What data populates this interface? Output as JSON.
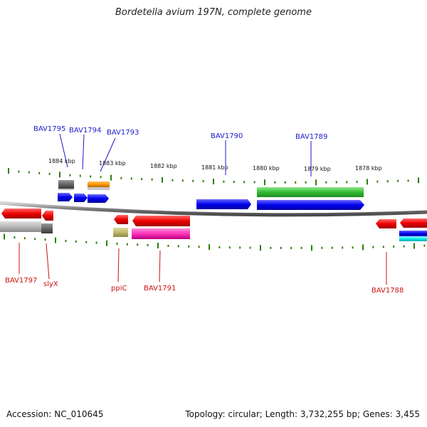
{
  "title": "Bordetella avium 197N, complete genome",
  "footer": {
    "accession": "Accession: NC_010645",
    "summary": "Topology: circular; Length: 3,732,255 bp; Genes: 3,455"
  },
  "colors": {
    "backbone": "#8c8c8c",
    "tick": "#2e7d0e",
    "label_top": "#1a1acc",
    "label_bottom": "#cc1111"
  },
  "scale_labels": [
    {
      "text": "1884 kbp",
      "kbp": 1884
    },
    {
      "text": "1883 kbp",
      "kbp": 1883
    },
    {
      "text": "1882 kbp",
      "kbp": 1882
    },
    {
      "text": "1881 kbp",
      "kbp": 1881
    },
    {
      "text": "1880 kbp",
      "kbp": 1880
    },
    {
      "text": "1879 kbp",
      "kbp": 1879
    },
    {
      "text": "1878 kbp",
      "kbp": 1878
    }
  ],
  "gene_labels": [
    {
      "text": "BAV1795",
      "side": "top"
    },
    {
      "text": "BAV1794",
      "side": "top"
    },
    {
      "text": "BAV1793",
      "side": "top"
    },
    {
      "text": "BAV1790",
      "side": "top"
    },
    {
      "text": "BAV1789",
      "side": "top"
    },
    {
      "text": "BAV1797",
      "side": "bottom"
    },
    {
      "text": "slyX",
      "side": "bottom"
    },
    {
      "text": "ppiC",
      "side": "bottom"
    },
    {
      "text": "BAV1791",
      "side": "bottom"
    },
    {
      "text": "BAV1788",
      "side": "bottom"
    }
  ]
}
